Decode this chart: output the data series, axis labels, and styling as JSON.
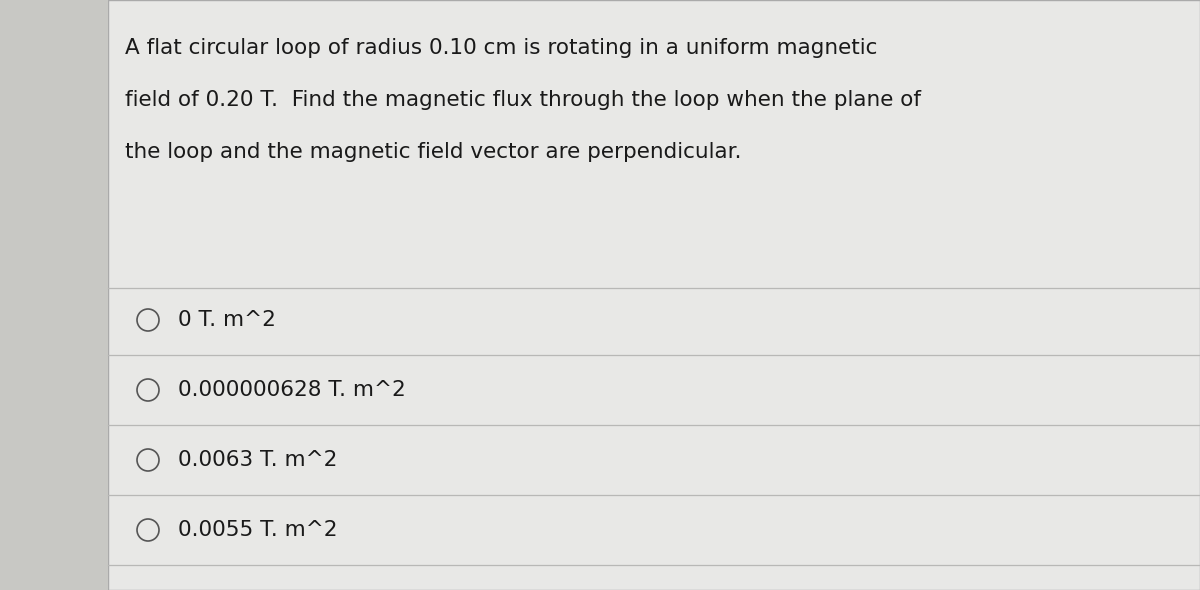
{
  "question_line1": "A flat circular loop of radius 0.10 cm is rotating in a uniform magnetic",
  "question_line2": "field of 0.20 T.  Find the magnetic flux through the loop when the plane of",
  "question_line3": "the loop and the magnetic field vector are perpendicular.",
  "options": [
    "0 T. m^2",
    "0.000000628 T. m^2",
    "0.0063 T. m^2",
    "0.0055 T. m^2"
  ],
  "outer_bg_color": "#c8c8c4",
  "panel_color": "#e8e8e6",
  "text_color": "#1a1a1a",
  "line_color": "#b8b8b6",
  "circle_edge_color": "#555555",
  "question_fontsize": 15.5,
  "option_fontsize": 15.5,
  "fig_width": 12.0,
  "fig_height": 5.9
}
